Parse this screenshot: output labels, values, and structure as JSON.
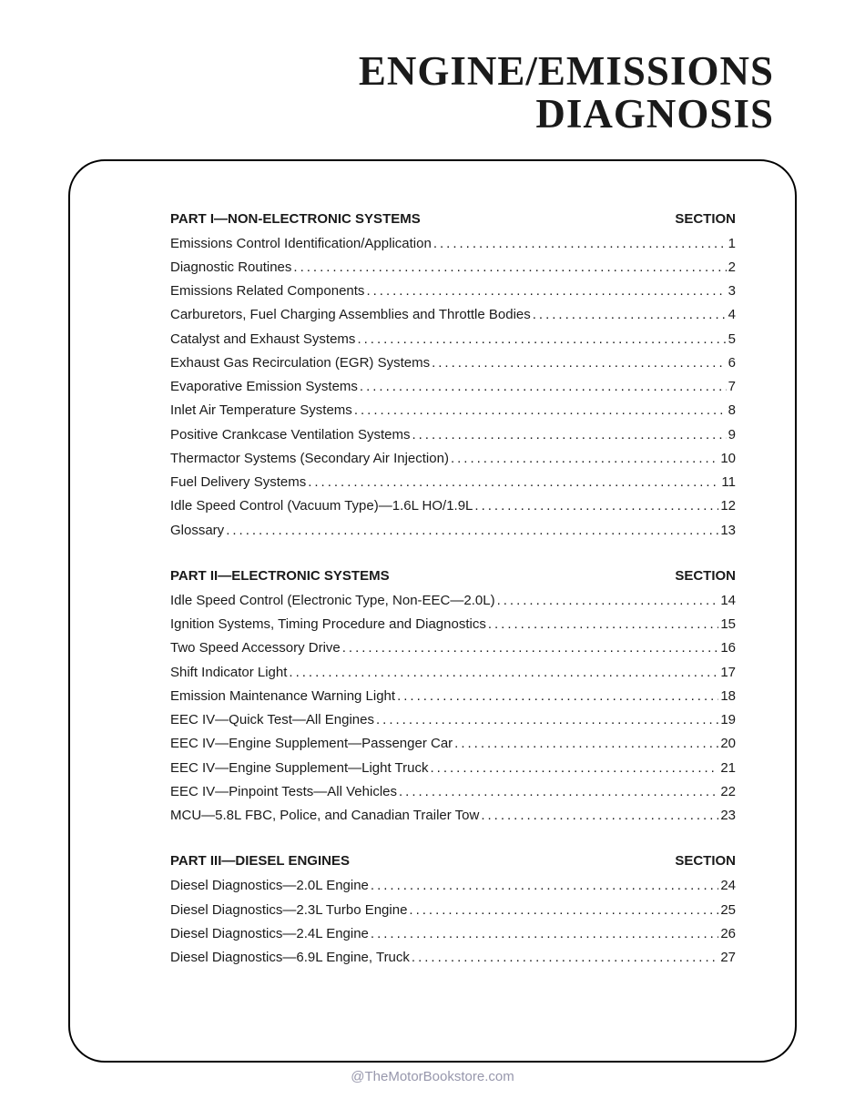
{
  "title_line1": "ENGINE/EMISSIONS",
  "title_line2": "DIAGNOSIS",
  "section_label": "SECTION",
  "parts": [
    {
      "heading": "PART I—NON-ELECTRONIC SYSTEMS",
      "items": [
        {
          "label": "Emissions Control Identification/Application",
          "num": "1"
        },
        {
          "label": "Diagnostic Routines",
          "num": "2"
        },
        {
          "label": "Emissions Related Components",
          "num": "3"
        },
        {
          "label": "Carburetors, Fuel Charging Assemblies and Throttle Bodies",
          "num": "4"
        },
        {
          "label": "Catalyst and Exhaust Systems",
          "num": "5"
        },
        {
          "label": "Exhaust Gas Recirculation (EGR) Systems",
          "num": "6"
        },
        {
          "label": "Evaporative Emission Systems",
          "num": "7"
        },
        {
          "label": "Inlet Air Temperature Systems",
          "num": "8"
        },
        {
          "label": "Positive Crankcase Ventilation Systems",
          "num": "9"
        },
        {
          "label": "Thermactor Systems (Secondary Air Injection)",
          "num": "10"
        },
        {
          "label": "Fuel Delivery Systems",
          "num": "11"
        },
        {
          "label": "Idle Speed Control (Vacuum Type)—1.6L HO/1.9L",
          "num": "12"
        },
        {
          "label": "Glossary",
          "num": "13"
        }
      ]
    },
    {
      "heading": "PART II—ELECTRONIC SYSTEMS",
      "items": [
        {
          "label": "Idle Speed Control (Electronic Type, Non-EEC—2.0L)",
          "num": "14"
        },
        {
          "label": "Ignition Systems, Timing Procedure and Diagnostics",
          "num": "15"
        },
        {
          "label": "Two Speed Accessory Drive",
          "num": "16"
        },
        {
          "label": "Shift Indicator Light",
          "num": "17"
        },
        {
          "label": "Emission Maintenance Warning Light",
          "num": "18"
        },
        {
          "label": "EEC IV—Quick Test—All Engines",
          "num": "19"
        },
        {
          "label": "EEC IV—Engine Supplement—Passenger Car",
          "num": "20"
        },
        {
          "label": "EEC IV—Engine Supplement—Light Truck",
          "num": "21"
        },
        {
          "label": "EEC IV—Pinpoint Tests—All Vehicles",
          "num": "22"
        },
        {
          "label": "MCU—5.8L FBC, Police, and Canadian Trailer Tow",
          "num": "23"
        }
      ]
    },
    {
      "heading": "PART III—DIESEL ENGINES",
      "items": [
        {
          "label": "Diesel Diagnostics—2.0L Engine",
          "num": "24"
        },
        {
          "label": "Diesel Diagnostics—2.3L Turbo Engine",
          "num": "25"
        },
        {
          "label": "Diesel Diagnostics—2.4L Engine",
          "num": "26"
        },
        {
          "label": "Diesel Diagnostics—6.9L Engine, Truck",
          "num": "27"
        }
      ]
    }
  ],
  "watermark": "@TheMotorBookstore.com",
  "colors": {
    "text": "#1a1a1a",
    "watermark": "#9797ac",
    "background": "#ffffff",
    "border": "#000000"
  }
}
